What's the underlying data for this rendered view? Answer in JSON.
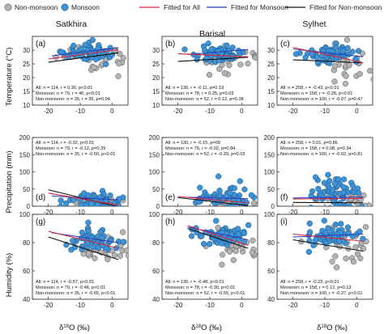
{
  "legend": {
    "nonmonsoon": "Non-monsoon",
    "monsoon": "Monsoon",
    "fit_all": "Fitted for All",
    "fit_monsoon": "Fitted for Monsoon",
    "fit_nonmonsoon": "Fitted for Non-monsoon"
  },
  "columns": [
    "Satkhira",
    "Barisal",
    "Sylhet"
  ],
  "rows": [
    {
      "label": "Temperature (°C)",
      "ylim": [
        10,
        35
      ],
      "yticks": [
        "10",
        "15",
        "20",
        "25",
        "30"
      ]
    },
    {
      "label": "Precipitation (mm)",
      "ylim": [
        0,
        200
      ],
      "yticks": [
        "0",
        "50",
        "100",
        "150",
        "200"
      ]
    },
    {
      "label": "Humidity (%)",
      "ylim": [
        40,
        100
      ],
      "yticks": [
        "40",
        "60",
        "80",
        "100"
      ]
    }
  ],
  "xlabel": "δ18O (‰)",
  "xticks": [
    "-20",
    "-10",
    "0"
  ],
  "colors": {
    "monsoon_fill": "#3d93d6",
    "nonmonsoon_fill": "#b3b3b3",
    "fit_all": "#d7263d",
    "fit_monsoon": "#2a3fbf",
    "fit_nonmonsoon": "#111111"
  },
  "chart_data": [
    {
      "type": "scatter",
      "panel": "(a)",
      "site": "Satkhira",
      "variable": "Temperature",
      "xlim": [
        -25,
        5
      ],
      "ylim": [
        10,
        35
      ],
      "stats": [
        "All: n = 114, r = 0.30, p<0.01",
        "Monsoon: n = 79, r = 46, p<0.01",
        "Non-monsoon: n = 35, r = 35, p=0.04"
      ],
      "fits": {
        "all": [
          [
            -20,
            26.8
          ],
          [
            2,
            30.2
          ]
        ],
        "monsoon": [
          [
            -19,
            27.9
          ],
          [
            2,
            30.9
          ]
        ],
        "nonmonsoon": [
          [
            -20,
            25.6
          ],
          [
            2,
            29.0
          ]
        ]
      },
      "monsoon_center": [
        -6,
        29
      ],
      "monsoon_spread": [
        4,
        1.6
      ],
      "nonmonsoon_center": [
        -4,
        27
      ],
      "nonmonsoon_spread": [
        6,
        2.6
      ]
    },
    {
      "type": "scatter",
      "panel": "(b)",
      "site": "Barisal",
      "variable": "Temperature",
      "xlim": [
        -25,
        5
      ],
      "ylim": [
        10,
        35
      ],
      "stats": [
        "All: n = 130, r = -0.11, p=0.19",
        "Monsoon: n = 78, r = 0.25, p=0.03",
        "Non-monsoon: n = 52, r = 0.12, p=0.38"
      ],
      "fits": {
        "all": [
          [
            -20,
            28.7
          ],
          [
            2,
            27.6
          ]
        ],
        "monsoon": [
          [
            -17,
            28.4
          ],
          [
            2,
            30.2
          ]
        ],
        "nonmonsoon": [
          [
            -20,
            25.9
          ],
          [
            2,
            27.4
          ]
        ]
      },
      "monsoon_center": [
        -7,
        29
      ],
      "monsoon_spread": [
        4,
        1.5
      ],
      "nonmonsoon_center": [
        -3,
        26
      ],
      "nonmonsoon_spread": [
        5,
        3
      ]
    },
    {
      "type": "scatter",
      "panel": "(c)",
      "site": "Sylhet",
      "variable": "Temperature",
      "xlim": [
        -25,
        5
      ],
      "ylim": [
        10,
        35
      ],
      "stats": [
        "All: n = 258, r = -0.43, p<0.01",
        "Monsoon: n = 158, r = -0.28, p<0.01",
        "Non-monsoon: n = 100, r = -0.07, p=0.47"
      ],
      "fits": {
        "all": [
          [
            -20,
            31.0
          ],
          [
            2,
            25.4
          ]
        ],
        "monsoon": [
          [
            -20,
            30.4
          ],
          [
            2,
            27.6
          ]
        ],
        "nonmonsoon": [
          [
            -20,
            26.5
          ],
          [
            2,
            25.4
          ]
        ]
      },
      "monsoon_center": [
        -8,
        28.5
      ],
      "monsoon_spread": [
        4,
        1.6
      ],
      "nonmonsoon_center": [
        -3,
        24
      ],
      "nonmonsoon_spread": [
        5,
        3.5
      ]
    },
    {
      "type": "scatter",
      "panel": "(d)",
      "site": "Satkhira",
      "variable": "Precipitation",
      "xlim": [
        -25,
        5
      ],
      "ylim": [
        0,
        200
      ],
      "stats": [
        "All: n = 114, r = -0.32, p<0.01",
        "Monsoon: n = 79, r = -0.12, p=0.29",
        "Non-monsoon: n = 35, r = -0.50, p<0.01"
      ],
      "fits": {
        "all": [
          [
            -20,
            38
          ],
          [
            2,
            3
          ]
        ],
        "monsoon": [
          [
            -19,
            30
          ],
          [
            2,
            18
          ]
        ],
        "nonmonsoon": [
          [
            -20,
            48
          ],
          [
            2,
            -2
          ]
        ]
      },
      "monsoon_center": [
        -6,
        18
      ],
      "monsoon_spread": [
        4,
        14
      ],
      "nonmonsoon_center": [
        -3,
        8
      ],
      "nonmonsoon_spread": [
        5,
        8
      ]
    },
    {
      "type": "scatter",
      "panel": "(e)",
      "site": "Barisal",
      "variable": "Precipitation",
      "xlim": [
        -25,
        5
      ],
      "ylim": [
        0,
        200
      ],
      "stats": [
        "All: n = 130, r = -0.15, p=09",
        "Monsoon: n = 78, r = -0.02, p=0.84",
        "Non-monsoon: n = 52, r = -0.29, p=0.03"
      ],
      "fits": {
        "all": [
          [
            -20,
            28
          ],
          [
            2,
            10
          ]
        ],
        "monsoon": [
          [
            -17,
            26
          ],
          [
            2,
            22
          ]
        ],
        "nonmonsoon": [
          [
            -20,
            25
          ],
          [
            2,
            2
          ]
        ]
      },
      "monsoon_center": [
        -6,
        25
      ],
      "monsoon_spread": [
        4,
        20
      ],
      "nonmonsoon_center": [
        -3,
        10
      ],
      "nonmonsoon_spread": [
        5,
        10
      ]
    },
    {
      "type": "scatter",
      "panel": "(f)",
      "site": "Sylhet",
      "variable": "Precipitation",
      "xlim": [
        -25,
        5
      ],
      "ylim": [
        0,
        200
      ],
      "stats": [
        "All: n = 258, r = 0.01, p=0.86",
        "Monsoon: n = 158, r = 0.08, p=0.34",
        "Non-monsoon: n = 100, r = -0.02, p=0.81"
      ],
      "fits": {
        "all": [
          [
            -20,
            21
          ],
          [
            2,
            23
          ]
        ],
        "monsoon": [
          [
            -20,
            24
          ],
          [
            2,
            27
          ]
        ],
        "nonmonsoon": [
          [
            -20,
            11
          ],
          [
            2,
            10
          ]
        ]
      },
      "monsoon_center": [
        -7,
        35
      ],
      "monsoon_spread": [
        4,
        28
      ],
      "nonmonsoon_center": [
        -3,
        12
      ],
      "nonmonsoon_spread": [
        5,
        12
      ]
    },
    {
      "type": "scatter",
      "panel": "(g)",
      "site": "Satkhira",
      "variable": "Humidity",
      "xlim": [
        -25,
        5
      ],
      "ylim": [
        40,
        100
      ],
      "stats": [
        "All: n = 114, r = -0.57, p<0.01",
        "Monsoon: n = 79, r = -0.46, p<0.01",
        "Non-monsoon: n = 35, r = -0.65, p<0.01"
      ],
      "fits": {
        "all": [
          [
            -20,
            88
          ],
          [
            2,
            76
          ]
        ],
        "monsoon": [
          [
            -19,
            87
          ],
          [
            2,
            80
          ]
        ],
        "nonmonsoon": [
          [
            -20,
            84
          ],
          [
            2,
            68
          ]
        ]
      },
      "monsoon_center": [
        -6,
        82
      ],
      "monsoon_spread": [
        4,
        4
      ],
      "nonmonsoon_center": [
        -2,
        74
      ],
      "nonmonsoon_spread": [
        5,
        6
      ]
    },
    {
      "type": "scatter",
      "panel": "(h)",
      "site": "Barisal",
      "variable": "Humidity",
      "xlim": [
        -25,
        5
      ],
      "ylim": [
        40,
        100
      ],
      "stats": [
        "All: n = 130, r = -0.48, p<0.01",
        "Monsoon: n = 78, r = -0.30, p<0.01",
        "Non-monsoon: n = 52, r = -0.55, p<0.01"
      ],
      "fits": {
        "all": [
          [
            -17,
            92
          ],
          [
            2,
            78
          ]
        ],
        "monsoon": [
          [
            -17,
            91
          ],
          [
            2,
            82
          ]
        ],
        "nonmonsoon": [
          [
            -17,
            90
          ],
          [
            2,
            76
          ]
        ]
      },
      "monsoon_center": [
        -6,
        85
      ],
      "monsoon_spread": [
        4,
        4
      ],
      "nonmonsoon_center": [
        -2,
        78
      ],
      "nonmonsoon_spread": [
        5,
        6
      ]
    },
    {
      "type": "scatter",
      "panel": "(i)",
      "site": "Sylhet",
      "variable": "Humidity",
      "xlim": [
        -25,
        5
      ],
      "ylim": [
        40,
        100
      ],
      "stats": [
        "All: n = 258, r = -0.23, p<0.01",
        "Monsoon: n = 158, r = 0.12, p=0.13",
        "Non-monsoon: n = 100, r = -0.37, p<0.01"
      ],
      "fits": {
        "all": [
          [
            -20,
            86
          ],
          [
            2,
            81
          ]
        ],
        "monsoon": [
          [
            -20,
            84
          ],
          [
            2,
            86
          ]
        ],
        "nonmonsoon": [
          [
            -20,
            82
          ],
          [
            2,
            74
          ]
        ]
      },
      "monsoon_center": [
        -8,
        85
      ],
      "monsoon_spread": [
        4,
        4
      ],
      "nonmonsoon_center": [
        -3,
        78
      ],
      "nonmonsoon_spread": [
        5,
        7
      ]
    }
  ]
}
